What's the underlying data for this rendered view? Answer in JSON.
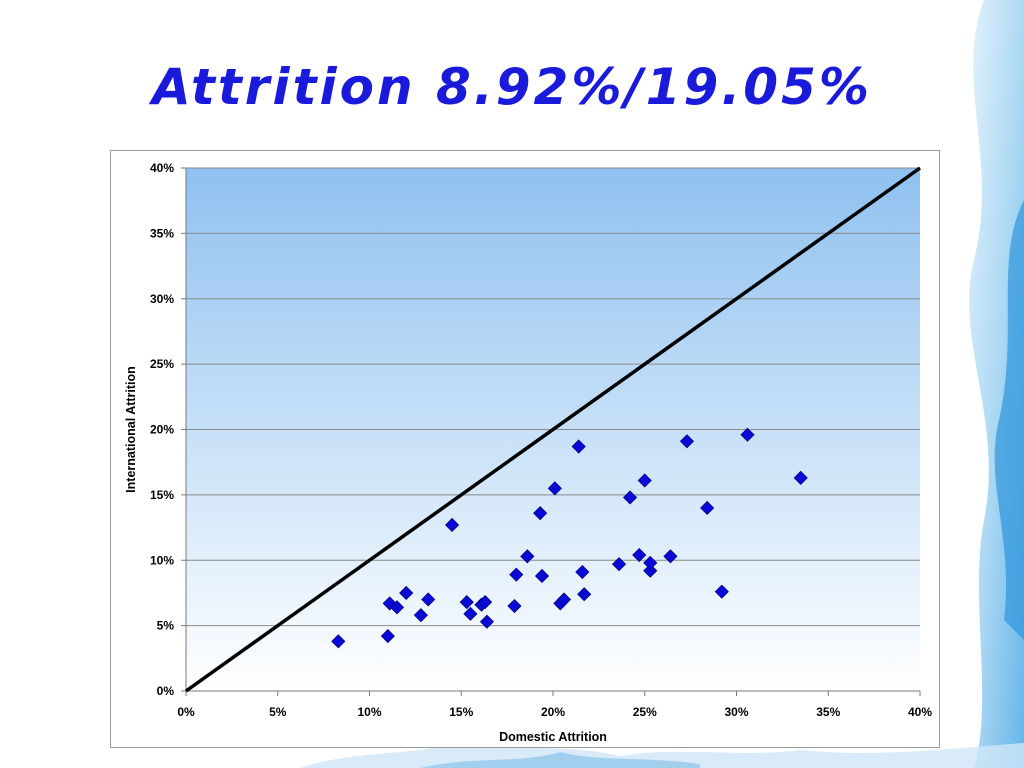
{
  "slide": {
    "title": "Attrition 8.92%/19.05%"
  },
  "colors": {
    "title": "#1a1adb",
    "marker": "#0a0ad8",
    "plot_top": "#8fc1f0",
    "plot_bottom": "#ffffff",
    "reference_line": "#000000"
  },
  "chart_data": {
    "type": "scatter",
    "title": "",
    "xlabel": "Domestic Attrition",
    "ylabel": "International Attrition",
    "xlim": [
      0,
      40
    ],
    "ylim": [
      0,
      40
    ],
    "x_ticks": [
      "0%",
      "5%",
      "10%",
      "15%",
      "20%",
      "25%",
      "30%",
      "35%",
      "40%"
    ],
    "y_ticks": [
      "0%",
      "5%",
      "10%",
      "15%",
      "20%",
      "25%",
      "30%",
      "35%",
      "40%"
    ],
    "grid": "horizontal",
    "reference_line": {
      "type": "y=x",
      "from": [
        0,
        0
      ],
      "to": [
        40,
        40
      ]
    },
    "marker": "diamond",
    "series": [
      {
        "points": [
          [
            8.3,
            3.8
          ],
          [
            11.0,
            4.2
          ],
          [
            11.1,
            6.7
          ],
          [
            11.5,
            6.4
          ],
          [
            12.0,
            7.5
          ],
          [
            12.8,
            5.8
          ],
          [
            13.2,
            7.0
          ],
          [
            14.5,
            12.7
          ],
          [
            15.3,
            6.8
          ],
          [
            15.5,
            5.9
          ],
          [
            16.1,
            6.6
          ],
          [
            16.3,
            6.8
          ],
          [
            16.4,
            5.3
          ],
          [
            17.9,
            6.5
          ],
          [
            18.0,
            8.9
          ],
          [
            18.6,
            10.3
          ],
          [
            19.3,
            13.6
          ],
          [
            19.4,
            8.8
          ],
          [
            20.1,
            15.5
          ],
          [
            20.4,
            6.7
          ],
          [
            20.6,
            7.0
          ],
          [
            21.4,
            18.7
          ],
          [
            21.6,
            9.1
          ],
          [
            21.7,
            7.4
          ],
          [
            23.6,
            9.7
          ],
          [
            24.2,
            14.8
          ],
          [
            24.7,
            10.4
          ],
          [
            25.0,
            16.1
          ],
          [
            25.3,
            9.2
          ],
          [
            25.3,
            9.8
          ],
          [
            26.4,
            10.3
          ],
          [
            27.3,
            19.1
          ],
          [
            28.4,
            14.0
          ],
          [
            29.2,
            7.6
          ],
          [
            30.6,
            19.6
          ],
          [
            33.5,
            16.3
          ]
        ]
      }
    ]
  }
}
